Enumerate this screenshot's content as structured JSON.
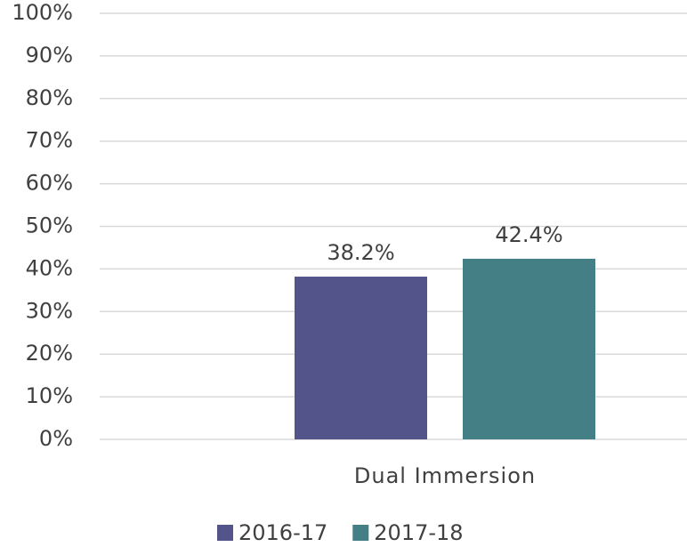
{
  "chart_data": {
    "type": "bar",
    "categories": [
      "Dual Immersion"
    ],
    "series": [
      {
        "name": "2016-17",
        "color": "#53548a",
        "values": [
          38.2
        ],
        "value_labels": [
          "38.2%"
        ]
      },
      {
        "name": "2017-18",
        "color": "#437f85",
        "values": [
          42.4
        ],
        "value_labels": [
          "42.4%"
        ]
      }
    ],
    "ylim": [
      0,
      100
    ],
    "yticks": [
      {
        "value": 0,
        "label": "0%"
      },
      {
        "value": 10,
        "label": "10%"
      },
      {
        "value": 20,
        "label": "20%"
      },
      {
        "value": 30,
        "label": "30%"
      },
      {
        "value": 40,
        "label": "40%"
      },
      {
        "value": 50,
        "label": "50%"
      },
      {
        "value": 60,
        "label": "60%"
      },
      {
        "value": 70,
        "label": "70%"
      },
      {
        "value": 80,
        "label": "80%"
      },
      {
        "value": 90,
        "label": "90%"
      },
      {
        "value": 100,
        "label": "100%"
      }
    ],
    "grid": true,
    "legend": "bottom"
  }
}
